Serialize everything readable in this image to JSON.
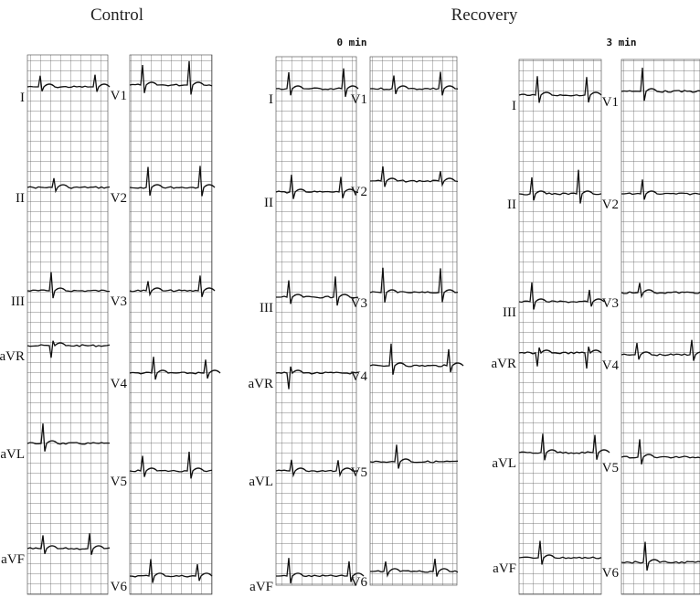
{
  "headers": {
    "control": "Control",
    "recovery": "Recovery"
  },
  "panels": [
    {
      "limb_leads": [
        "I",
        "II",
        "III",
        "aVR",
        "aVL",
        "aVF"
      ],
      "chest_leads": [
        "V1",
        "V2",
        "V3",
        "V4",
        "V5",
        "V6"
      ]
    },
    {
      "time": "0 min",
      "limb_leads": [
        "I",
        "II",
        "III",
        "aVR",
        "aVL",
        "aVF"
      ],
      "chest_leads": [
        "V1",
        "V2",
        "V3",
        "V4",
        "V5",
        "V6"
      ]
    },
    {
      "time": "3 min",
      "limb_leads": [
        "I",
        "II",
        "III",
        "aVR",
        "aVL",
        "aVF"
      ],
      "chest_leads": [
        "V1",
        "V2",
        "V3",
        "V4",
        "V5",
        "V6"
      ]
    }
  ]
}
